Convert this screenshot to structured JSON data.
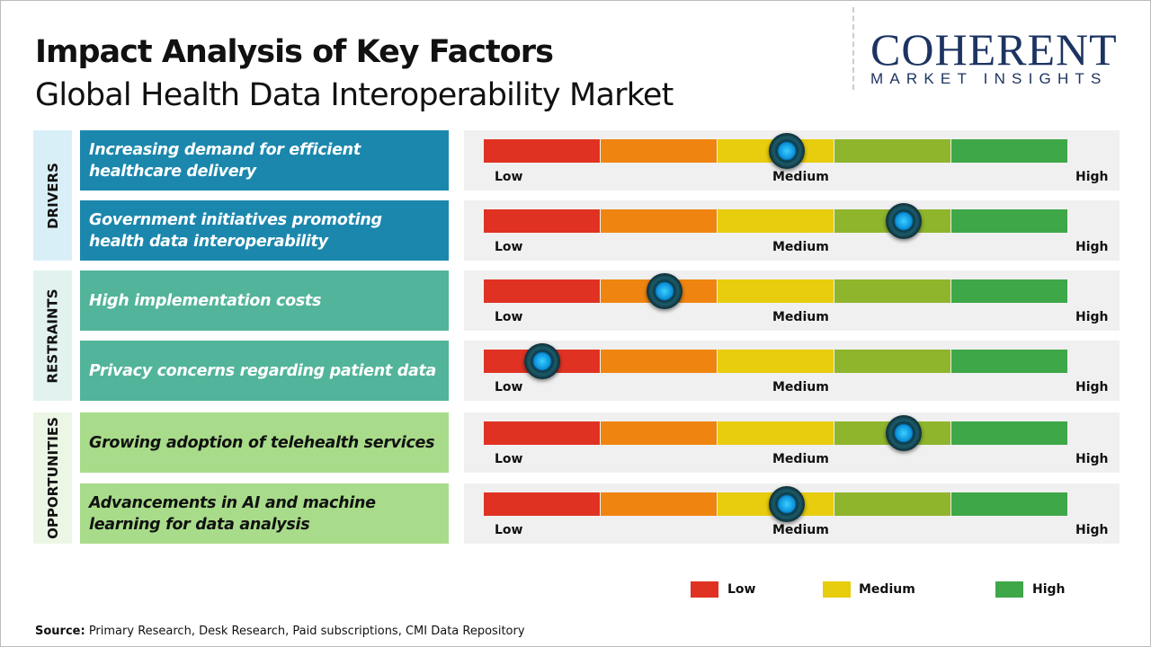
{
  "title": "Impact Analysis of Key Factors",
  "subtitle": "Global Health Data Interoperability Market",
  "logo": {
    "main": "COHERENT",
    "sub": "MARKET INSIGHTS"
  },
  "source": {
    "label": "Source:",
    "text": " Primary Research, Desk Research, Paid subscriptions, CMI Data Repository"
  },
  "colors": {
    "segments": [
      "#e03222",
      "#ef8510",
      "#e8cc0e",
      "#8fb52c",
      "#3ea748"
    ],
    "drivers": "#1b87ad",
    "restraints": "#52b49a",
    "opportunities": "#a8dc8a",
    "category_bg": {
      "drivers": "#d9eff8",
      "restraints": "#e2f3ef",
      "opportunities": "#ebf6e4"
    }
  },
  "chart_data": {
    "type": "gauge-table",
    "scale_labels": [
      "Low",
      "Medium",
      "High"
    ],
    "categories": [
      {
        "name": "DRIVERS",
        "key": "drivers",
        "factors": [
          {
            "label": "Increasing demand for efficient healthcare delivery",
            "level": 0.52
          },
          {
            "label": "Government initiatives promoting health data interoperability",
            "level": 0.72
          }
        ]
      },
      {
        "name": "RESTRAINTS",
        "key": "restraints",
        "factors": [
          {
            "label": "High implementation costs",
            "level": 0.31
          },
          {
            "label": "Privacy concerns regarding patient data",
            "level": 0.1
          }
        ]
      },
      {
        "name": "OPPORTUNITIES",
        "key": "opportunities",
        "factors": [
          {
            "label": "Growing adoption of telehealth services",
            "level": 0.72
          },
          {
            "label": "Advancements in AI and machine learning for data analysis",
            "level": 0.52
          }
        ]
      }
    ],
    "legend": [
      {
        "label": "Low",
        "color": "#e03222"
      },
      {
        "label": "Medium",
        "color": "#e8cc0e"
      },
      {
        "label": "High",
        "color": "#3ea748"
      }
    ]
  }
}
